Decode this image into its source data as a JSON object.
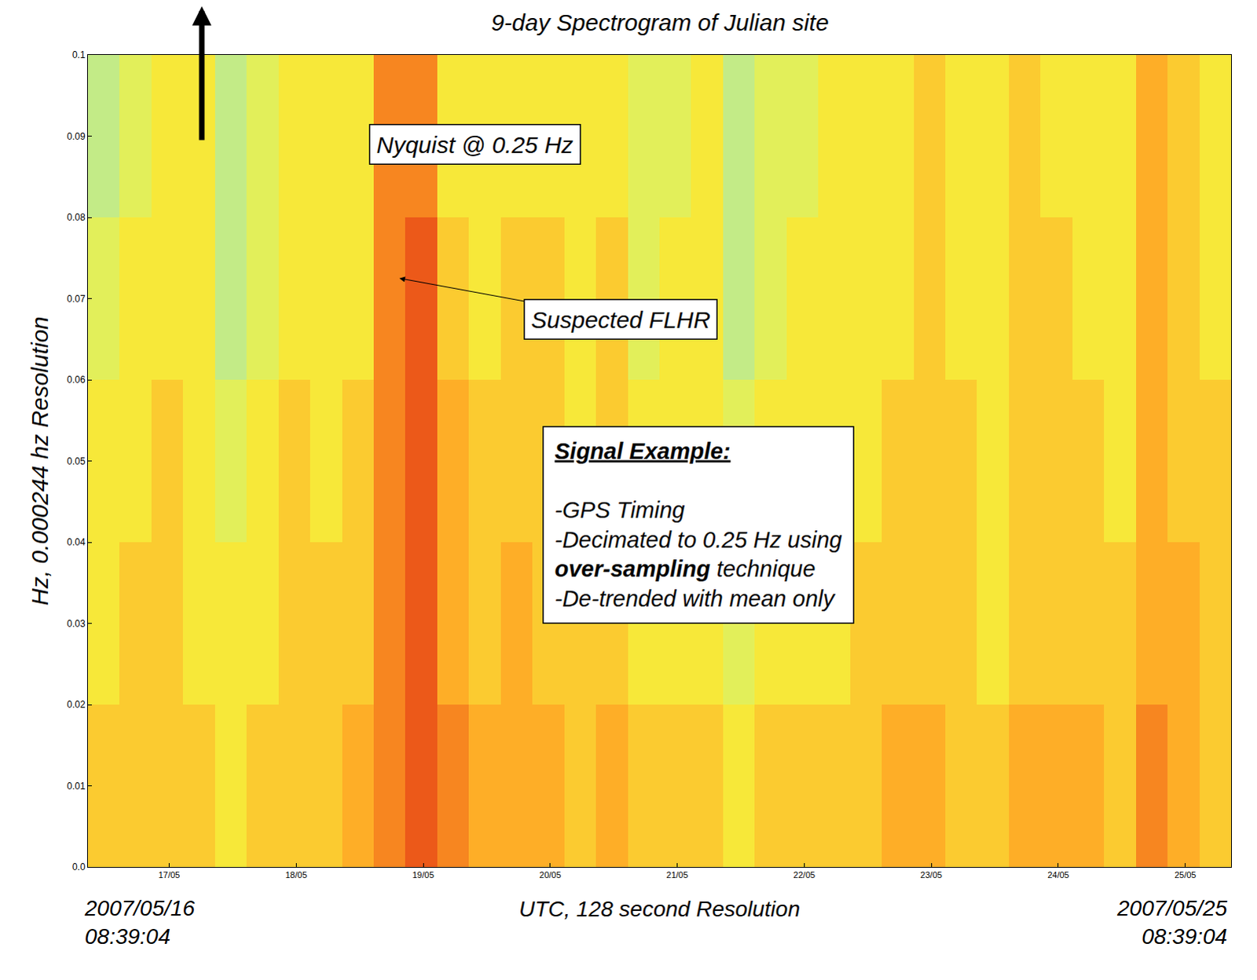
{
  "chart_data": {
    "type": "heatmap",
    "title": "9-day Spectrogram of Julian site",
    "x_label": "UTC, 128 second Resolution",
    "y_label": "Hz, 0.000244 hz Resolution",
    "x": [
      "2007-05-16 08:39:04",
      "2007-05-16 14:39:04",
      "2007-05-16 20:39:04",
      "2007-05-17 02:39:04",
      "2007-05-17 08:39:04",
      "2007-05-17 14:39:04",
      "2007-05-17 20:39:04",
      "2007-05-18 02:39:04",
      "2007-05-18 08:39:04",
      "2007-05-18 14:39:04",
      "2007-05-18 20:39:04",
      "2007-05-19 02:39:04",
      "2007-05-19 08:39:04",
      "2007-05-19 14:39:04",
      "2007-05-19 20:39:04",
      "2007-05-20 02:39:04",
      "2007-05-20 08:39:04",
      "2007-05-20 14:39:04",
      "2007-05-20 20:39:04",
      "2007-05-21 02:39:04",
      "2007-05-21 08:39:04",
      "2007-05-21 14:39:04",
      "2007-05-21 20:39:04",
      "2007-05-22 02:39:04",
      "2007-05-22 08:39:04",
      "2007-05-22 14:39:04",
      "2007-05-22 20:39:04",
      "2007-05-23 02:39:04",
      "2007-05-23 08:39:04",
      "2007-05-23 14:39:04",
      "2007-05-23 20:39:04",
      "2007-05-24 02:39:04",
      "2007-05-24 08:39:04",
      "2007-05-24 14:39:04",
      "2007-05-24 20:39:04",
      "2007-05-25 02:39:04",
      "2007-05-25 08:39:04"
    ],
    "y": [
      0,
      0.02,
      0.04,
      0.06,
      0.08,
      0.1
    ],
    "cells": [
      [
        6,
        6,
        6,
        6,
        5,
        6,
        6,
        6,
        7,
        8,
        9,
        8,
        7,
        7,
        7,
        6,
        7,
        6,
        6,
        6,
        5,
        6,
        6,
        6,
        6,
        7,
        7,
        6,
        6,
        7,
        7,
        7,
        6,
        8,
        7,
        6
      ],
      [
        5,
        6,
        6,
        5,
        5,
        5,
        6,
        6,
        6,
        8,
        9,
        7,
        6,
        7,
        6,
        6,
        6,
        5,
        5,
        5,
        4,
        5,
        5,
        5,
        6,
        6,
        6,
        6,
        5,
        6,
        6,
        6,
        6,
        7,
        7,
        6
      ],
      [
        5,
        5,
        6,
        5,
        4,
        5,
        6,
        5,
        6,
        8,
        9,
        7,
        6,
        6,
        6,
        5,
        6,
        5,
        5,
        5,
        4,
        5,
        5,
        5,
        5,
        6,
        6,
        6,
        5,
        6,
        6,
        6,
        5,
        7,
        6,
        6
      ],
      [
        4,
        5,
        5,
        5,
        3,
        4,
        5,
        5,
        5,
        8,
        9,
        6,
        5,
        6,
        6,
        5,
        6,
        4,
        5,
        5,
        3,
        4,
        5,
        5,
        5,
        5,
        6,
        5,
        5,
        6,
        6,
        5,
        5,
        7,
        6,
        5
      ],
      [
        3,
        4,
        5,
        5,
        3,
        4,
        5,
        5,
        5,
        8,
        8,
        5,
        5,
        5,
        5,
        5,
        5,
        4,
        4,
        5,
        3,
        4,
        4,
        5,
        5,
        5,
        6,
        5,
        5,
        6,
        5,
        5,
        5,
        7,
        6,
        5
      ]
    ],
    "zlim": [
      2,
      10
    ],
    "colors": [
      "#a4e6b4",
      "#f6f23c",
      "#ffa424",
      "#e02c12"
    ],
    "xlim": [
      "2007-05-16 08:39:04",
      "2007-05-25 08:39:04"
    ],
    "xticks": [
      {
        "value": "2007-05-17",
        "label": "17/05"
      },
      {
        "value": "2007-05-18",
        "label": "18/05"
      },
      {
        "value": "2007-05-19",
        "label": "19/05"
      },
      {
        "value": "2007-05-20",
        "label": "20/05"
      },
      {
        "value": "2007-05-21",
        "label": "21/05"
      },
      {
        "value": "2007-05-22",
        "label": "22/05"
      },
      {
        "value": "2007-05-23",
        "label": "23/05"
      },
      {
        "value": "2007-05-24",
        "label": "24/05"
      },
      {
        "value": "2007-05-25",
        "label": "25/05"
      }
    ],
    "ylim": [
      0,
      0.1
    ],
    "yticks": [
      {
        "value": 0,
        "label": "0.0"
      },
      0.01,
      0.02,
      0.03,
      0.04,
      0.05,
      0.06,
      0.07,
      0.08,
      0.09,
      {
        "value": 0.1,
        "label": "0.1"
      }
    ],
    "grid": true,
    "annotations": [
      {
        "text": "Nyquist @ 0.25 Hz"
      },
      {
        "text": "Suspected FLHR",
        "x": "2007-05-18 19:30",
        "y": 0.0725
      },
      {
        "title": "Signal Example:",
        "lines": [
          "-GPS Timing",
          "-Decimated to 0.25 Hz using",
          "over-sampling technique",
          "-De-trended with mean only"
        ],
        "bold": "over-sampling"
      },
      {
        "lines": [
          "2007/05/16",
          "08:39:04"
        ]
      },
      {
        "lines": [
          "2007/05/25",
          "08:39:04"
        ]
      }
    ]
  }
}
